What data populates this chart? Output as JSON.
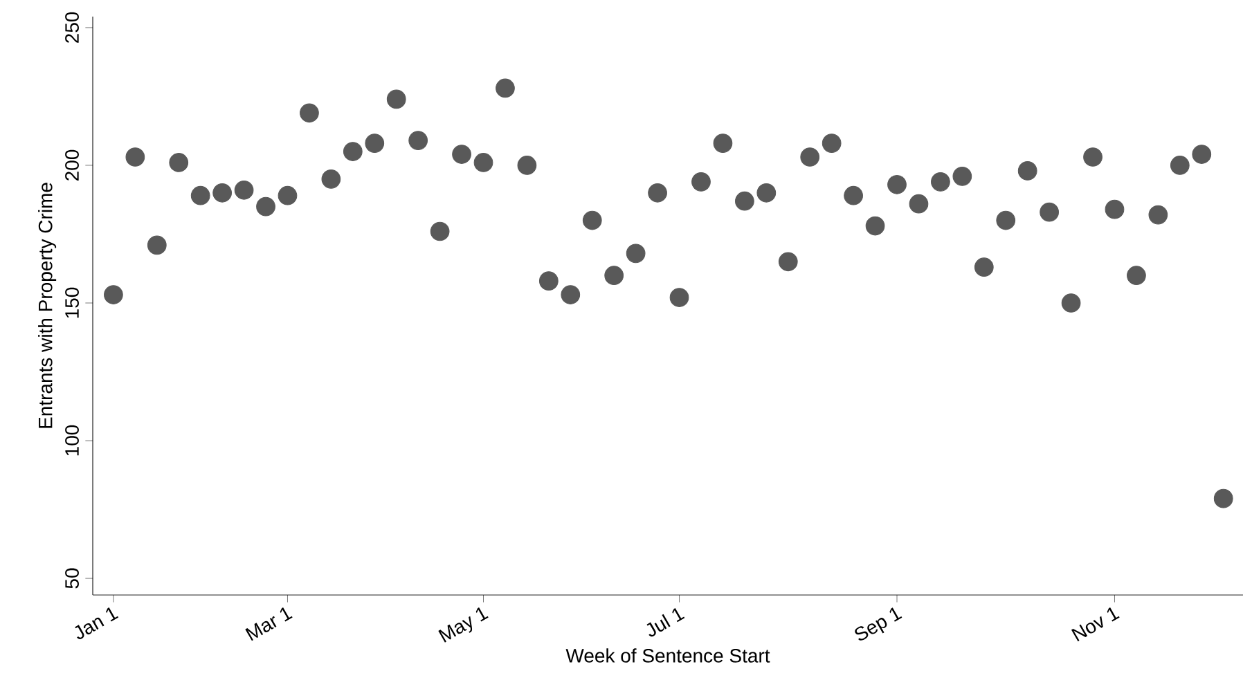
{
  "chart_data": {
    "type": "scatter",
    "xlabel": "Week of Sentence Start",
    "ylabel": "Entrants with Property Crime",
    "categories": [
      "Jan 1",
      null,
      null,
      null,
      null,
      null,
      null,
      null,
      "Mar 1",
      null,
      null,
      null,
      null,
      null,
      null,
      null,
      null,
      "May 1",
      null,
      null,
      null,
      null,
      null,
      null,
      null,
      null,
      "Jul 1",
      null,
      null,
      null,
      null,
      null,
      null,
      null,
      null,
      null,
      "Sep 1",
      null,
      null,
      null,
      null,
      null,
      null,
      null,
      null,
      null,
      "Nov 1",
      null,
      null,
      null,
      null,
      null
    ],
    "values": [
      153,
      203,
      171,
      201,
      189,
      190,
      191,
      185,
      189,
      219,
      195,
      205,
      208,
      224,
      209,
      176,
      204,
      201,
      228,
      200,
      158,
      153,
      180,
      160,
      168,
      190,
      152,
      194,
      208,
      187,
      190,
      165,
      203,
      208,
      189,
      178,
      193,
      186,
      194,
      196,
      163,
      180,
      198,
      183,
      150,
      203,
      184,
      160,
      182,
      200,
      204,
      79
    ],
    "color": "#595959",
    "marker": "circle",
    "ylim": [
      44,
      254
    ],
    "yticks": [
      50,
      100,
      150,
      200,
      250
    ]
  }
}
